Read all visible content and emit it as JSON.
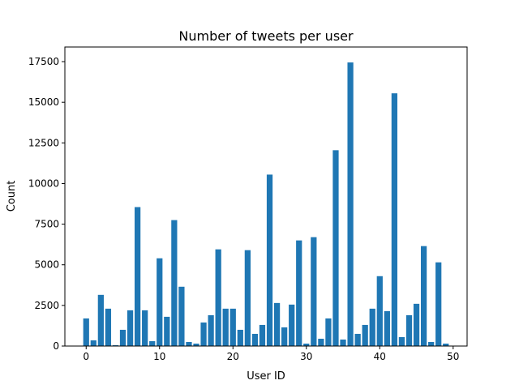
{
  "chart_data": {
    "type": "bar",
    "title": "Number of tweets per user",
    "xlabel": "User ID",
    "ylabel": "Count",
    "xlim": [
      -2.9,
      51.9
    ],
    "ylim": [
      0,
      18400
    ],
    "xticks": [
      0,
      10,
      20,
      30,
      40,
      50
    ],
    "yticks": [
      0,
      2500,
      5000,
      7500,
      10000,
      12500,
      15000,
      17500
    ],
    "bar_color": "#1f77b4",
    "grid": false,
    "x": [
      0,
      1,
      2,
      3,
      4,
      5,
      6,
      7,
      8,
      9,
      10,
      11,
      12,
      13,
      14,
      15,
      16,
      17,
      18,
      19,
      20,
      21,
      22,
      23,
      24,
      25,
      26,
      27,
      28,
      29,
      30,
      31,
      32,
      33,
      34,
      35,
      36,
      37,
      38,
      39,
      40,
      41,
      42,
      43,
      44,
      45,
      46,
      47,
      48,
      49
    ],
    "values": [
      1700,
      350,
      3150,
      2300,
      50,
      1000,
      2200,
      8550,
      2200,
      300,
      5400,
      1800,
      7750,
      3650,
      250,
      150,
      1450,
      1900,
      5950,
      2300,
      2300,
      1000,
      5900,
      750,
      1300,
      10550,
      2650,
      1150,
      2550,
      6500,
      150,
      6700,
      450,
      1700,
      12050,
      400,
      17450,
      750,
      1300,
      2300,
      4300,
      2150,
      15550,
      550,
      1900,
      2600,
      6150,
      250,
      5150,
      150
    ]
  }
}
